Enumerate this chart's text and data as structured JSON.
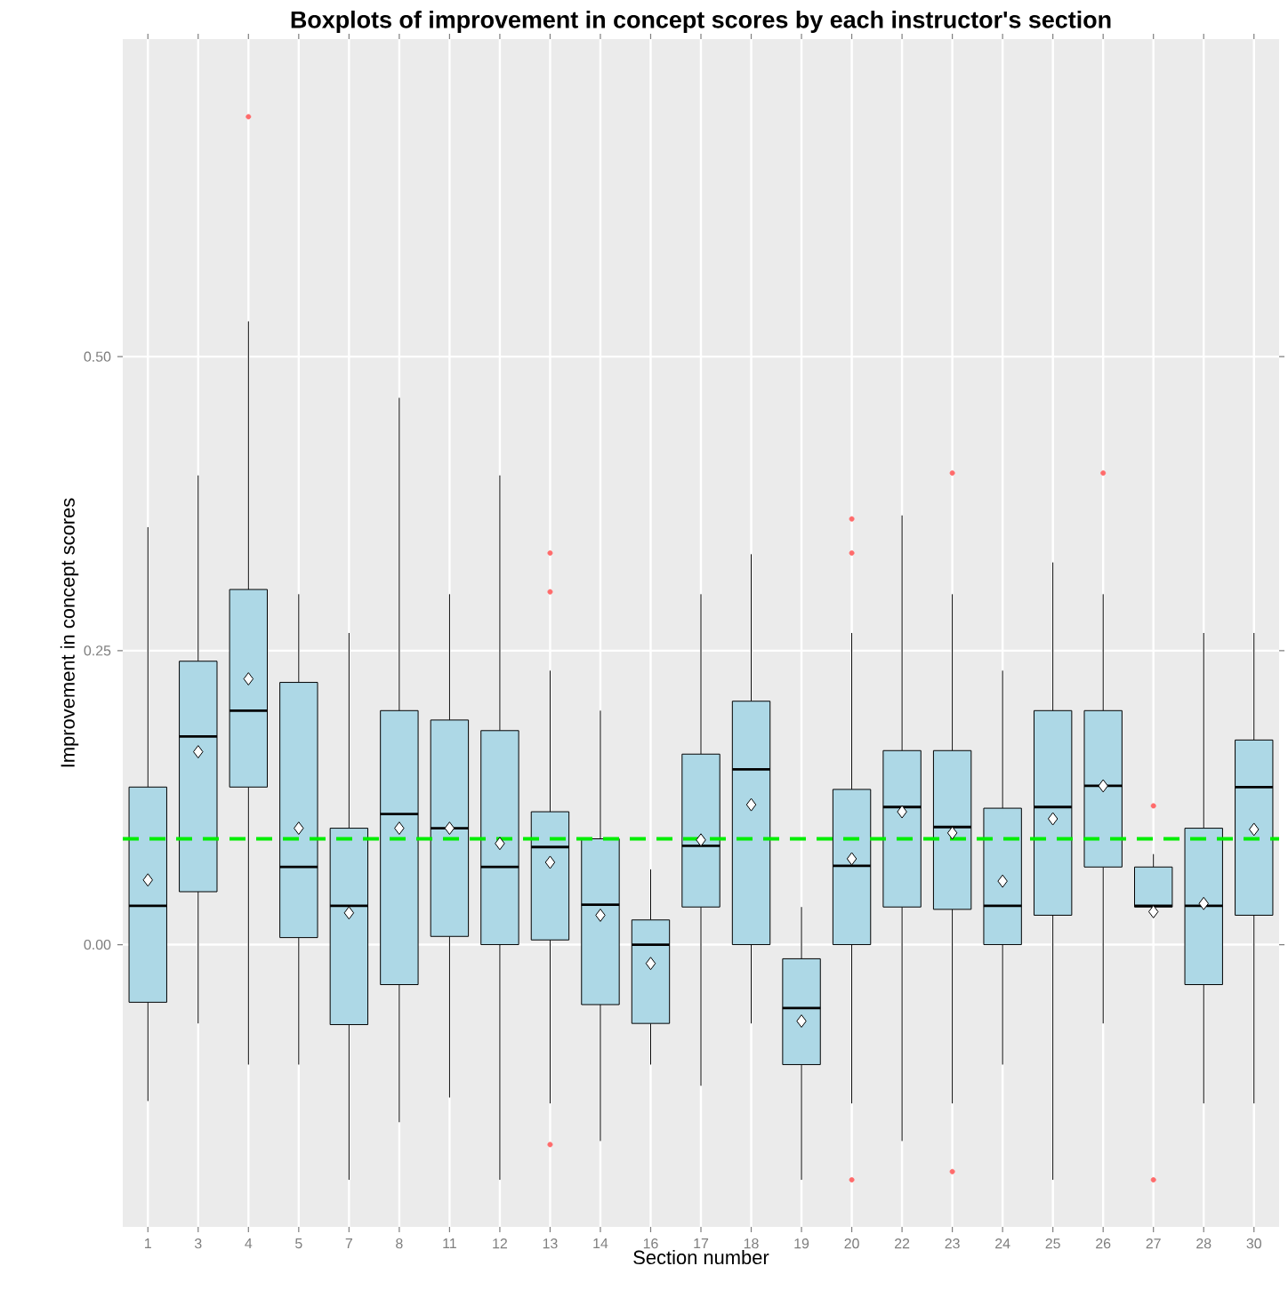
{
  "chart_data": {
    "type": "box",
    "title": "Boxplots of improvement in concept scores by each instructor's section",
    "xlabel": "Section number",
    "ylabel": "Improvement in concept scores",
    "categories": [
      "1",
      "3",
      "4",
      "5",
      "7",
      "8",
      "11",
      "12",
      "13",
      "14",
      "16",
      "17",
      "18",
      "19",
      "20",
      "22",
      "23",
      "24",
      "25",
      "26",
      "27",
      "28",
      "30"
    ],
    "color": "#add8e6",
    "grid": true,
    "ylim": [
      -0.24,
      0.77
    ],
    "yticks": [
      {
        "value": 0,
        "label": "0.00"
      },
      {
        "value": 0.25,
        "label": "0.25"
      },
      {
        "value": 0.5,
        "label": "0.50"
      }
    ],
    "ref_lines": [
      {
        "axis": "y",
        "value": 0.09,
        "color": "#00ee00",
        "line_style": "dashed"
      }
    ],
    "boxes": [
      {
        "low": -0.133,
        "q1": -0.049,
        "median": 0.033,
        "q3": 0.134,
        "high": 0.355,
        "mean": 0.055
      },
      {
        "low": -0.067,
        "q1": 0.045,
        "median": 0.177,
        "q3": 0.241,
        "high": 0.399,
        "mean": 0.164
      },
      {
        "low": -0.102,
        "q1": 0.134,
        "median": 0.199,
        "q3": 0.302,
        "high": 0.53,
        "mean": 0.226,
        "outliers": [
          0.704
        ]
      },
      {
        "low": -0.102,
        "q1": 0.006,
        "median": 0.066,
        "q3": 0.223,
        "high": 0.298,
        "mean": 0.099
      },
      {
        "low": -0.2,
        "q1": -0.068,
        "median": 0.033,
        "q3": 0.099,
        "high": 0.265,
        "mean": 0.027
      },
      {
        "low": -0.151,
        "q1": -0.034,
        "median": 0.111,
        "q3": 0.199,
        "high": 0.465,
        "mean": 0.099
      },
      {
        "low": -0.13,
        "q1": 0.007,
        "median": 0.099,
        "q3": 0.191,
        "high": 0.298,
        "mean": 0.099
      },
      {
        "low": -0.2,
        "q1": 0.0,
        "median": 0.066,
        "q3": 0.182,
        "high": 0.399,
        "mean": 0.086
      },
      {
        "low": -0.135,
        "q1": 0.004,
        "median": 0.083,
        "q3": 0.113,
        "high": 0.233,
        "mean": 0.07,
        "outliers": [
          0.333,
          0.3,
          -0.17
        ]
      },
      {
        "low": -0.167,
        "q1": -0.051,
        "median": 0.034,
        "q3": 0.09,
        "high": 0.199,
        "mean": 0.025
      },
      {
        "low": -0.102,
        "q1": -0.067,
        "median": 0.0,
        "q3": 0.021,
        "high": 0.064,
        "mean": -0.016
      },
      {
        "low": -0.12,
        "q1": 0.032,
        "median": 0.084,
        "q3": 0.162,
        "high": 0.298,
        "mean": 0.089
      },
      {
        "low": -0.067,
        "q1": 0.0,
        "median": 0.149,
        "q3": 0.207,
        "high": 0.332,
        "mean": 0.119
      },
      {
        "low": -0.2,
        "q1": -0.102,
        "median": -0.054,
        "q3": -0.012,
        "high": 0.032,
        "mean": -0.065
      },
      {
        "low": -0.135,
        "q1": 0.0,
        "median": 0.067,
        "q3": 0.132,
        "high": 0.265,
        "mean": 0.073,
        "outliers": [
          0.362,
          0.333,
          -0.2
        ]
      },
      {
        "low": -0.167,
        "q1": 0.032,
        "median": 0.117,
        "q3": 0.165,
        "high": 0.365,
        "mean": 0.113
      },
      {
        "low": -0.135,
        "q1": 0.03,
        "median": 0.1,
        "q3": 0.165,
        "high": 0.298,
        "mean": 0.095,
        "outliers": [
          0.401,
          -0.193
        ]
      },
      {
        "low": -0.102,
        "q1": 0.0,
        "median": 0.033,
        "q3": 0.116,
        "high": 0.233,
        "mean": 0.054
      },
      {
        "low": -0.2,
        "q1": 0.025,
        "median": 0.117,
        "q3": 0.199,
        "high": 0.325,
        "mean": 0.107
      },
      {
        "low": -0.067,
        "q1": 0.066,
        "median": 0.135,
        "q3": 0.199,
        "high": 0.298,
        "mean": 0.135,
        "outliers": [
          0.401
        ]
      },
      {
        "low": 0.03,
        "q1": 0.032,
        "median": 0.033,
        "q3": 0.066,
        "high": 0.077,
        "mean": 0.028,
        "outliers": [
          0.118,
          -0.2
        ]
      },
      {
        "low": -0.135,
        "q1": -0.034,
        "median": 0.033,
        "q3": 0.099,
        "high": 0.265,
        "mean": 0.035
      },
      {
        "low": -0.135,
        "q1": 0.025,
        "median": 0.134,
        "q3": 0.174,
        "high": 0.265,
        "mean": 0.098
      }
    ]
  }
}
